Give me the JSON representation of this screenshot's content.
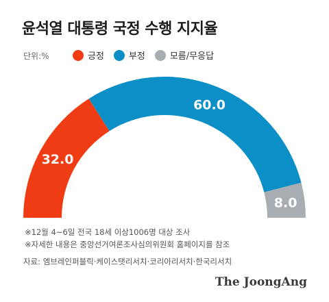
{
  "chart_data": {
    "type": "pie",
    "title": "윤석열 대통령 국정 수행 지지율",
    "unit_label": "단위:%",
    "categories": [
      "긍정",
      "부정",
      "모름/무응답"
    ],
    "values": [
      32.0,
      60.0,
      8.0
    ],
    "value_labels": [
      "32.0",
      "60.0",
      "8.0"
    ],
    "colors": [
      "#f03c14",
      "#0b8fc6",
      "#a8adb2"
    ],
    "style": "semicircle-donut",
    "legend_position": "top"
  },
  "notes": [
    "※12월 4~6일 전국 18세 이상1006명 대상 조사",
    "※자세한 내용은 중앙선거여론조사심의위원회 홈페이지를 참조"
  ],
  "source": "자료: 엠브레인퍼블릭·케이스탯리서치·코리아리서치·한국리서치",
  "logo": "The JoongAng"
}
